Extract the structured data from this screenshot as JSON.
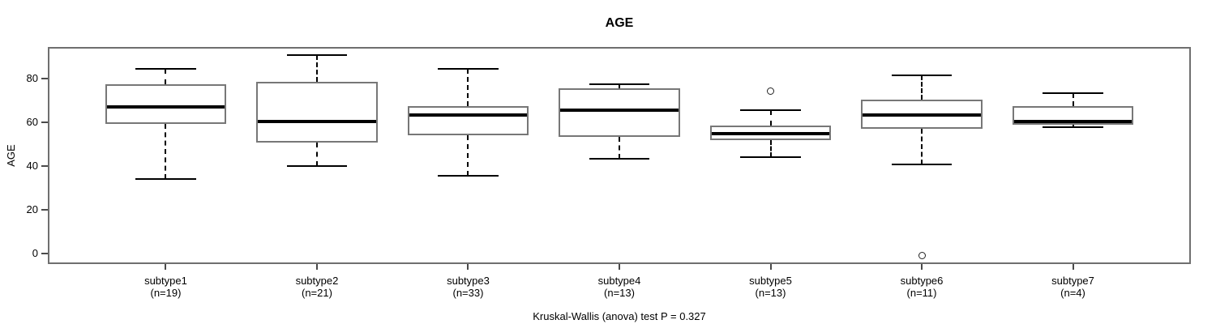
{
  "title": "AGE",
  "caption": "Kruskal-Wallis (anova) test P = 0.327",
  "chart_data": {
    "type": "boxplot",
    "title": "AGE",
    "xlabel": "",
    "ylabel": "AGE",
    "yticks": [
      0,
      20,
      40,
      60,
      80
    ],
    "ylim": [
      -4.8,
      94.6
    ],
    "xlim": [
      0.22,
      7.78
    ],
    "grid": false,
    "legend": "none",
    "footnote": "Kruskal-Wallis (anova) test P = 0.327",
    "series": [
      {
        "name": "subtype1",
        "count_label": "(n=19)",
        "n": 19,
        "low": 34,
        "q1": 59.5,
        "median": 67,
        "q3": 77.5,
        "high": 84.5,
        "outliers": []
      },
      {
        "name": "subtype2",
        "count_label": "(n=21)",
        "n": 21,
        "low": 40,
        "q1": 51,
        "median": 60.5,
        "q3": 78.5,
        "high": 91,
        "outliers": []
      },
      {
        "name": "subtype3",
        "count_label": "(n=33)",
        "n": 33,
        "low": 35.5,
        "q1": 54,
        "median": 63.5,
        "q3": 67.5,
        "high": 84.5,
        "outliers": []
      },
      {
        "name": "subtype4",
        "count_label": "(n=13)",
        "n": 13,
        "low": 43.5,
        "q1": 53.5,
        "median": 65.5,
        "q3": 75.5,
        "high": 77.5,
        "outliers": []
      },
      {
        "name": "subtype5",
        "count_label": "(n=13)",
        "n": 13,
        "low": 44,
        "q1": 52,
        "median": 55,
        "q3": 58.5,
        "high": 65.5,
        "outliers": [
          74.5
        ]
      },
      {
        "name": "subtype6",
        "count_label": "(n=11)",
        "n": 11,
        "low": 41,
        "q1": 57,
        "median": 63.5,
        "q3": 70.5,
        "high": 81.5,
        "outliers": [
          -1
        ]
      },
      {
        "name": "subtype7",
        "count_label": "(n=4)",
        "n": 4,
        "low": 58,
        "q1": 59,
        "median": 60.5,
        "q3": 67.5,
        "high": 73.5,
        "outliers": []
      }
    ],
    "colors": {
      "box_border": "#777777",
      "median": "#000000",
      "whisker": "#000000",
      "frame": "#6f6f6f",
      "text": "#000000",
      "background": "#ffffff"
    }
  }
}
